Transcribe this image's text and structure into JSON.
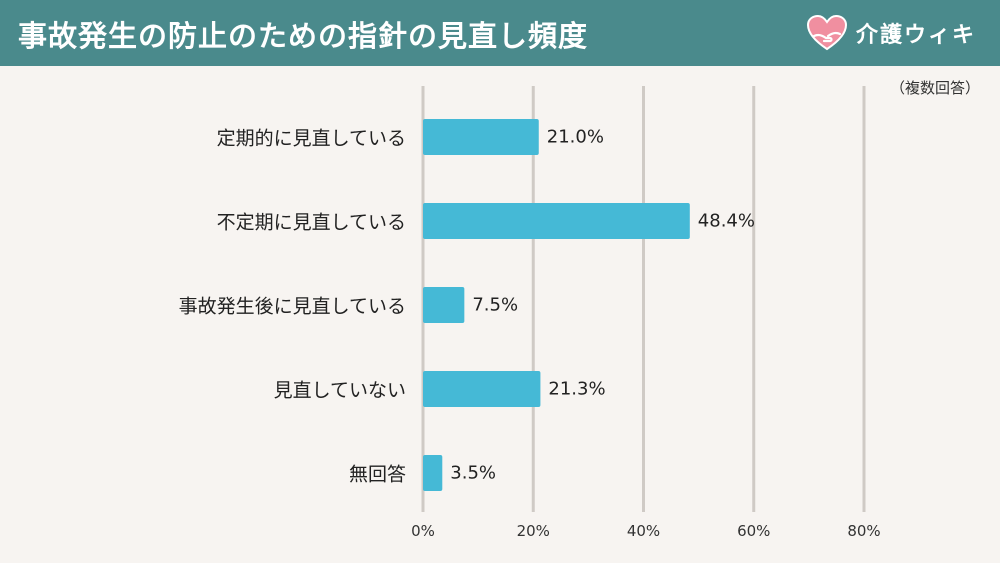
{
  "header": {
    "title": "事故発生の防止のための指針の見直し頻度",
    "brand_name": "介護ウィキ",
    "brand_icon": "heart-hands-icon"
  },
  "colors": {
    "header_bg": "#4a8a8c",
    "bar": "#45b9d6",
    "grid": "#cfcac5",
    "background": "#f7f4f1",
    "logo_heart": "#f08fa0"
  },
  "chart_data": {
    "type": "bar",
    "orientation": "horizontal",
    "note": "（複数回答）",
    "categories": [
      "定期的に見直している",
      "不定期に見直している",
      "事故発生後に見直している",
      "見直していない",
      "無回答"
    ],
    "values": [
      21.0,
      48.4,
      7.5,
      21.3,
      3.5
    ],
    "value_labels": [
      "21.0%",
      "48.4%",
      "7.5%",
      "21.3%",
      "3.5%"
    ],
    "xlim": [
      0,
      80
    ],
    "ticks": [
      0,
      20,
      40,
      60,
      80
    ],
    "tick_labels": [
      "0%",
      "20%",
      "40%",
      "60%",
      "80%"
    ],
    "grid": true,
    "legend": "none"
  }
}
